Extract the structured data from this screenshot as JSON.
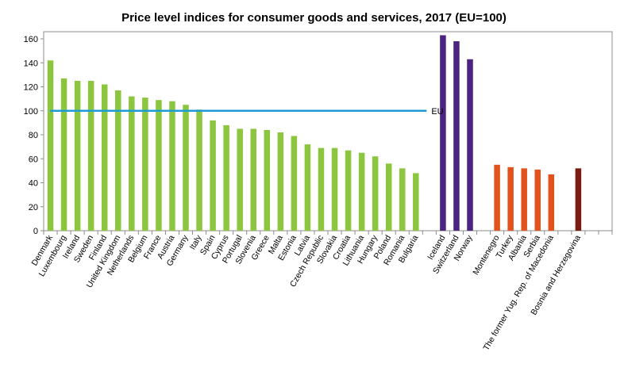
{
  "chart_data": {
    "type": "bar",
    "title": "Price level indices for consumer goods and services, 2017 (EU=100)",
    "xlabel": "",
    "ylabel": "",
    "ylim": [
      0,
      160
    ],
    "yticks": [
      0,
      20,
      40,
      60,
      80,
      100,
      120,
      140,
      160
    ],
    "grid": false,
    "reference_line": {
      "label": "EU",
      "value": 100,
      "color": "#1f9bd7"
    },
    "categories": [
      "Denmark",
      "Luxembourg",
      "Ireland",
      "Sweden",
      "Finland",
      "United Kingdom",
      "Netherlands",
      "Belgium",
      "France",
      "Austria",
      "Germany",
      "Italy",
      "Spain",
      "Cyprus",
      "Portugal",
      "Slovenia",
      "Greece",
      "Malta",
      "Estonia",
      "Latvia",
      "Czech Republic",
      "Slovakia",
      "Croatia",
      "Lithuania",
      "Hungary",
      "Poland",
      "Romania",
      "Bulgaria",
      "",
      "Iceland",
      "Switzerland",
      "Norway",
      "",
      "Montenegro",
      "Turkey",
      "Albania",
      "Serbia",
      "The former Yug. Rep. of Macedonia",
      "",
      "Bosnia and Herzegovina",
      "",
      ""
    ],
    "values": [
      142,
      127,
      125,
      125,
      122,
      117,
      112,
      111,
      109,
      108,
      105,
      101,
      92,
      88,
      85,
      85,
      84,
      82,
      79,
      72,
      69,
      69,
      67,
      65,
      62,
      56,
      52,
      48,
      null,
      163,
      158,
      143,
      null,
      55,
      53,
      52,
      51,
      47,
      null,
      52,
      null,
      null
    ],
    "bar_colors": [
      "#8cc63f",
      "#8cc63f",
      "#8cc63f",
      "#8cc63f",
      "#8cc63f",
      "#8cc63f",
      "#8cc63f",
      "#8cc63f",
      "#8cc63f",
      "#8cc63f",
      "#8cc63f",
      "#8cc63f",
      "#8cc63f",
      "#8cc63f",
      "#8cc63f",
      "#8cc63f",
      "#8cc63f",
      "#8cc63f",
      "#8cc63f",
      "#8cc63f",
      "#8cc63f",
      "#8cc63f",
      "#8cc63f",
      "#8cc63f",
      "#8cc63f",
      "#8cc63f",
      "#8cc63f",
      "#8cc63f",
      null,
      "#4b2380",
      "#4b2380",
      "#4b2380",
      null,
      "#e2521d",
      "#e2521d",
      "#e2521d",
      "#e2521d",
      "#e2521d",
      null,
      "#7b1c12",
      null,
      null
    ]
  }
}
